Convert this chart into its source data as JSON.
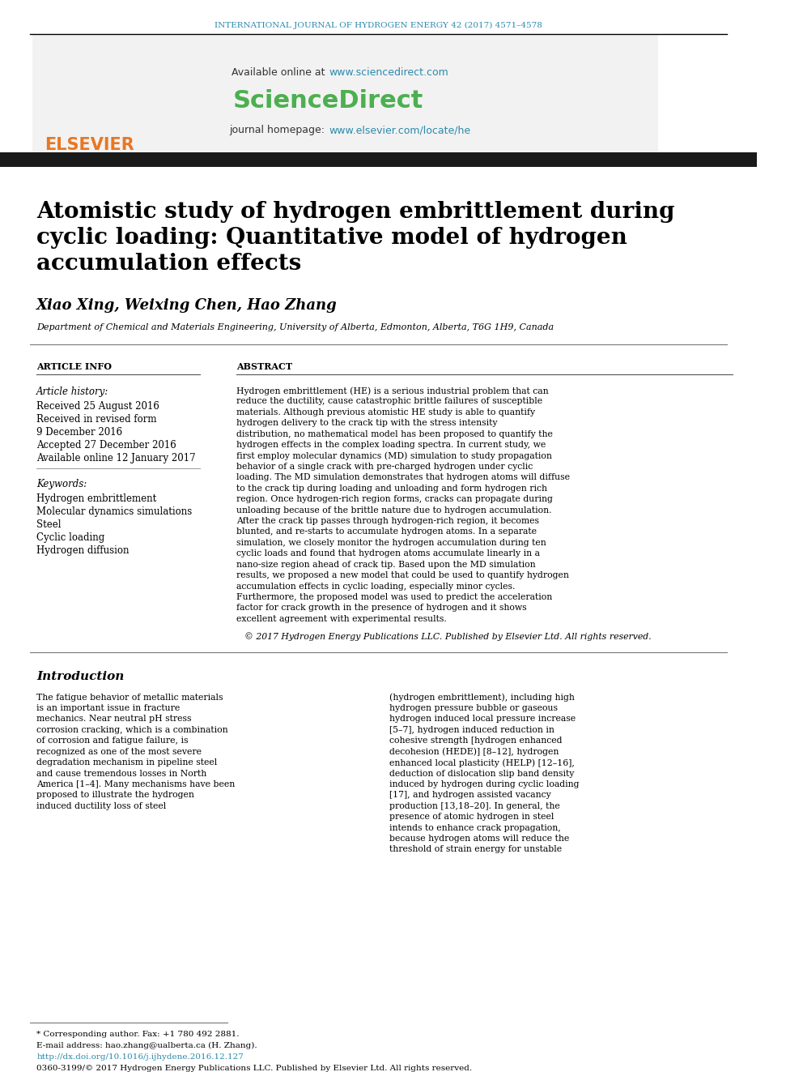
{
  "journal_header": "INTERNATIONAL JOURNAL OF HYDROGEN ENERGY 42 (2017) 4571–4578",
  "available_online": "Available online at ",
  "sciencedirect_url": "www.sciencedirect.com",
  "sciencedirect_text": "ScienceDirect",
  "journal_homepage": "journal homepage: ",
  "journal_url": "www.elsevier.com/locate/he",
  "elsevier_text": "ELSEVIER",
  "title_line1": "Atomistic study of hydrogen embrittlement during",
  "title_line2": "cyclic loading: Quantitative model of hydrogen",
  "title_line3": "accumulation effects",
  "authors": "Xiao Xing, Weixing Chen, Hao Zhang",
  "affiliation": "Department of Chemical and Materials Engineering, University of Alberta, Edmonton, Alberta, T6G 1H9, Canada",
  "article_info_header": "ARTICLE INFO",
  "abstract_header": "ABSTRACT",
  "article_history_label": "Article history:",
  "received1": "Received 25 August 2016",
  "received_revised": "Received in revised form",
  "date_revised": "9 December 2016",
  "accepted": "Accepted 27 December 2016",
  "available_online2": "Available online 12 January 2017",
  "keywords_label": "Keywords:",
  "keywords": [
    "Hydrogen embrittlement",
    "Molecular dynamics simulations",
    "Steel",
    "Cyclic loading",
    "Hydrogen diffusion"
  ],
  "abstract_text": "Hydrogen embrittlement (HE) is a serious industrial problem that can reduce the ductility, cause catastrophic brittle failures of susceptible materials. Although previous atomistic HE study is able to quantify hydrogen delivery to the crack tip with the stress intensity distribution, no mathematical model has been proposed to quantify the hydrogen effects in the complex loading spectra. In current study, we first employ molecular dynamics (MD) simulation to study propagation behavior of a single crack with pre-charged hydrogen under cyclic loading. The MD simulation demonstrates that hydrogen atoms will diffuse to the crack tip during loading and unloading and form hydrogen rich region. Once hydrogen-rich region forms, cracks can propagate during unloading because of the brittle nature due to hydrogen accumulation. After the crack tip passes through hydrogen-rich region, it becomes blunted, and re-starts to accumulate hydrogen atoms. In a separate simulation, we closely monitor the hydrogen accumulation during ten cyclic loads and found that hydrogen atoms accumulate linearly in a nano-size region ahead of crack tip. Based upon the MD simulation results, we proposed a new model that could be used to quantify hydrogen accumulation effects in cyclic loading, especially minor cycles. Furthermore, the proposed model was used to predict the acceleration factor for crack growth in the presence of hydrogen and it shows excellent agreement with experimental results.",
  "copyright": "© 2017 Hydrogen Energy Publications LLC. Published by Elsevier Ltd. All rights reserved.",
  "intro_header": "Introduction",
  "intro_text_left": "The fatigue behavior of metallic materials is an important issue in fracture mechanics. Near neutral pH stress corrosion cracking, which is a combination of corrosion and fatigue failure, is recognized as one of the most severe degradation mechanism in pipeline steel and cause tremendous losses in North America [1–4]. Many mechanisms have been proposed to illustrate the hydrogen induced ductility loss of steel",
  "intro_text_right": "(hydrogen embrittlement), including high hydrogen pressure bubble or gaseous hydrogen induced local pressure increase [5–7], hydrogen induced reduction in cohesive strength [hydrogen enhanced decohesion (HEDE)] [8–12], hydrogen enhanced local plasticity (HELP) [12–16], deduction of dislocation slip band density induced by hydrogen during cyclic loading [17], and hydrogen assisted vacancy production [13,18–20]. In general, the presence of atomic hydrogen in steel intends to enhance crack propagation, because hydrogen atoms will reduce the threshold of strain energy for unstable",
  "footnote1": "* Corresponding author. Fax: +1 780 492 2881.",
  "footnote2": "E-mail address: hao.zhang@ualberta.ca (H. Zhang).",
  "footnote_doi": "http://dx.doi.org/10.1016/j.ijhydene.2016.12.127",
  "footnote_issn": "0360-3199/© 2017 Hydrogen Energy Publications LLC. Published by Elsevier Ltd. All rights reserved.",
  "header_color": "#2B8AAD",
  "sciencedirect_color": "#4CAF50",
  "elsevier_color": "#E87722",
  "url_color": "#2B8AAD",
  "black_bar_color": "#1a1a1a",
  "title_color": "#000000",
  "header_bg": "#f0f0f0"
}
